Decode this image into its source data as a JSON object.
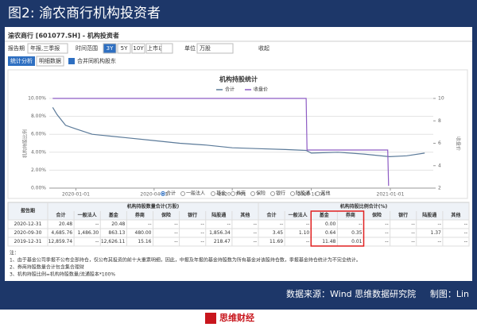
{
  "header": {
    "title": "图2: 渝农商行机构投资者"
  },
  "window": {
    "title": "渝农商行 [601077.SH] - 机构投资者"
  },
  "toolbar": {
    "period_label": "报告期",
    "period_value": "年报,三季报",
    "range_label": "时间范围",
    "range_options": [
      "3Y",
      "5Y",
      "10Y",
      "上市以来"
    ],
    "unit_label": "单位",
    "unit_value": "万股",
    "collapse": "收起"
  },
  "tabs": [
    "统计分析",
    "明细数据"
  ],
  "merge_checkbox": "合并同机构股东",
  "chart_data": {
    "type": "line",
    "title": "机构持股统计",
    "y_label": "机构持股比例",
    "y2_label": "收盘价",
    "xlim": [
      "2019-12-01",
      "2021-02-20"
    ],
    "xticks": [
      "2020-01-01",
      "2020-04-01",
      "2020-07-01",
      "2020-10-01",
      "2021-01-01"
    ],
    "ylim": [
      0,
      10
    ],
    "yticks": [
      {
        "value": 0,
        "label": "0.00%"
      },
      {
        "value": 2,
        "label": "2.00%"
      },
      {
        "value": 4,
        "label": "4.00%"
      },
      {
        "value": 6,
        "label": "6.00%"
      },
      {
        "value": 8,
        "label": "8.00%"
      },
      {
        "value": 10,
        "label": "10.00%"
      }
    ],
    "y2lim": [
      2,
      10
    ],
    "y2ticks": [
      2,
      4,
      6,
      8,
      10
    ],
    "grid": true,
    "series": [
      {
        "name": "合计",
        "color": "#5b7a99",
        "x": [
          "2019-12-05",
          "2019-12-10",
          "2019-12-20",
          "2020-01-01",
          "2020-01-20",
          "2020-02-10",
          "2020-03-01",
          "2020-04-01",
          "2020-05-01",
          "2020-06-01",
          "2020-07-01",
          "2020-08-01",
          "2020-09-01",
          "2020-09-25",
          "2020-10-01",
          "2020-11-01",
          "2020-12-01",
          "2020-12-31",
          "2021-01-20",
          "2021-02-10"
        ],
        "values": [
          9.0,
          8.2,
          7.0,
          6.6,
          6.0,
          5.8,
          5.6,
          5.3,
          5.0,
          4.8,
          4.5,
          4.4,
          4.3,
          4.2,
          3.9,
          4.0,
          3.8,
          3.5,
          3.6,
          3.9
        ]
      },
      {
        "name": "收盘价",
        "color": "#8e5cc4",
        "axis": "y2",
        "x": [
          "2019-12-05",
          "2020-09-25",
          "2020-09-26",
          "2020-12-29",
          "2020-12-30"
        ],
        "values": [
          10,
          10,
          5.4,
          5.4,
          2.2
        ]
      }
    ],
    "filter_options": [
      "合计",
      "一般法人",
      "基金",
      "券商",
      "保险",
      "银行",
      "陆股通",
      "其他"
    ]
  },
  "table": {
    "title_col": "报告期",
    "group_headers": [
      "机构持股数量合计(万股)",
      "机构持股比例合计(%)"
    ],
    "sub_headers": [
      "合计",
      "一般法人",
      "基金",
      "券商",
      "保险",
      "银行",
      "陆股通",
      "其他",
      "合计",
      "一般法人",
      "基金",
      "券商",
      "保险",
      "银行",
      "陆股通",
      "其他"
    ],
    "rows": [
      [
        "2020-12-31",
        "20.48",
        "--",
        "20.48",
        "--",
        "--",
        "--",
        "--",
        "--",
        "--",
        "--",
        "0.00",
        "--",
        "--",
        "--",
        "--",
        "--"
      ],
      [
        "2020-09-30",
        "4,685.76",
        "1,486.30",
        "863.13",
        "480.00",
        "--",
        "--",
        "1,856.34",
        "--",
        "3.45",
        "1.10",
        "0.64",
        "0.35",
        "--",
        "--",
        "1.37",
        "--"
      ],
      [
        "2019-12-31",
        "12,859.74",
        "--",
        "12,626.11",
        "15.16",
        "--",
        "--",
        "218.47",
        "--",
        "11.69",
        "--",
        "11.48",
        "0.01",
        "--",
        "--",
        "--",
        "--"
      ]
    ]
  },
  "notes": [
    "注：",
    "1、由于基金公司季报不公布全部持仓，仅公布其投资的前十大重票明细，因此，中报及年报的基金持股数为所有基金对该股持仓数，季报基金持仓统计为不完全统计。",
    "2、券商持股数量合计包含集合理财",
    "3、机构持股比例=机构持股数量/流通股本*100%"
  ],
  "footer": {
    "source": "数据来源：Wind  思维数据研究院",
    "author": "制图：Lin"
  },
  "logo": {
    "name": "思维财经"
  }
}
